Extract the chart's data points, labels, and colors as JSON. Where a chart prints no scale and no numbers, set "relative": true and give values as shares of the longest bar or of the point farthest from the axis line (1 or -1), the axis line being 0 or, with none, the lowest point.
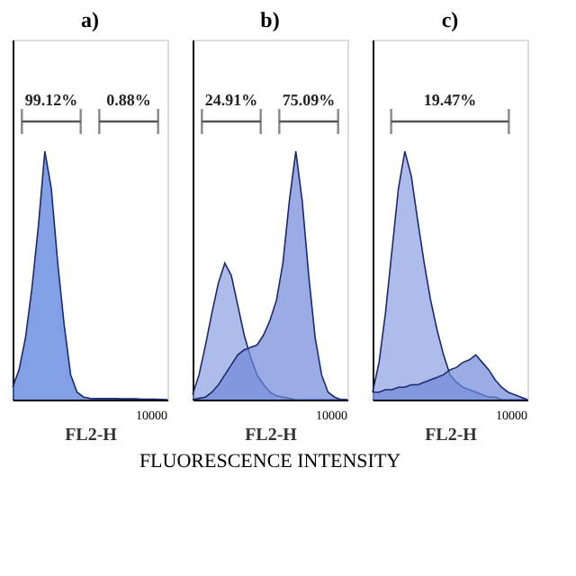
{
  "chart_data": [
    {
      "type": "area",
      "title": "a)",
      "xlabel": "FL2-H",
      "relative": true,
      "grid": false,
      "categories": [
        null,
        null,
        null,
        null,
        null,
        null,
        null,
        null,
        null,
        null,
        null,
        null,
        null,
        null,
        null,
        null,
        null,
        null,
        null,
        null,
        null,
        null,
        null,
        null,
        null
      ],
      "series": [
        {
          "color": "#4f78db",
          "values": [
            0.05,
            0.12,
            0.25,
            0.45,
            0.7,
            1.0,
            0.85,
            0.55,
            0.3,
            0.1,
            0.03,
            0.01,
            0.005,
            0.004,
            0.004,
            0.004,
            0.004,
            0.003,
            0.003,
            0.003,
            0.002,
            0.002,
            0.002,
            0.001,
            0
          ]
        }
      ],
      "annotations": [
        {
          "text": "99.12%"
        },
        {
          "text": "0.88%"
        },
        "10000"
      ]
    },
    {
      "type": "area",
      "title": "b)",
      "xlabel": "FL2-H",
      "relative": true,
      "grid": false,
      "categories": [
        null,
        null,
        null,
        null,
        null,
        null,
        null,
        null,
        null,
        null,
        null,
        null,
        null,
        null,
        null,
        null,
        null,
        null,
        null,
        null,
        null,
        null,
        null,
        null,
        null
      ],
      "series": [
        {
          "color": "#8c9fe3",
          "values": [
            0.02,
            0.1,
            0.22,
            0.35,
            0.47,
            0.55,
            0.5,
            0.38,
            0.26,
            0.17,
            0.1,
            0.06,
            0.03,
            0.015,
            0.01,
            0.005,
            0,
            0,
            0,
            0,
            0,
            0,
            0,
            0,
            0
          ]
        },
        {
          "color": "#7088d8",
          "values": [
            0,
            0.005,
            0.01,
            0.03,
            0.06,
            0.1,
            0.14,
            0.18,
            0.2,
            0.21,
            0.22,
            0.26,
            0.32,
            0.4,
            0.55,
            0.8,
            1.0,
            0.8,
            0.5,
            0.25,
            0.1,
            0.03,
            0.01,
            0,
            0
          ]
        }
      ],
      "annotations": [
        {
          "text": "24.91%"
        },
        {
          "text": "75.09%"
        },
        "10000",
        "FLUORESCENCE INTENSITY"
      ]
    },
    {
      "type": "area",
      "title": "c)",
      "xlabel": "FL2-H",
      "relative": true,
      "grid": false,
      "categories": [
        null,
        null,
        null,
        null,
        null,
        null,
        null,
        null,
        null,
        null,
        null,
        null,
        null,
        null,
        null,
        null,
        null,
        null,
        null,
        null,
        null,
        null,
        null,
        null,
        null
      ],
      "series": [
        {
          "color": "#8c9fe3",
          "values": [
            0.03,
            0.15,
            0.35,
            0.6,
            0.85,
            1.0,
            0.9,
            0.72,
            0.55,
            0.4,
            0.28,
            0.18,
            0.1,
            0.07,
            0.05,
            0.04,
            0.03,
            0.02,
            0.01,
            0.01,
            0,
            0,
            0,
            0,
            0
          ]
        },
        {
          "color": "#7088d8",
          "values": [
            0.03,
            0.03,
            0.04,
            0.04,
            0.05,
            0.05,
            0.06,
            0.06,
            0.07,
            0.08,
            0.09,
            0.1,
            0.12,
            0.13,
            0.15,
            0.16,
            0.18,
            0.15,
            0.12,
            0.08,
            0.05,
            0.03,
            0.02,
            0.01,
            0
          ]
        }
      ],
      "annotations": [
        {
          "text": "19.47%"
        },
        "10000"
      ]
    }
  ]
}
